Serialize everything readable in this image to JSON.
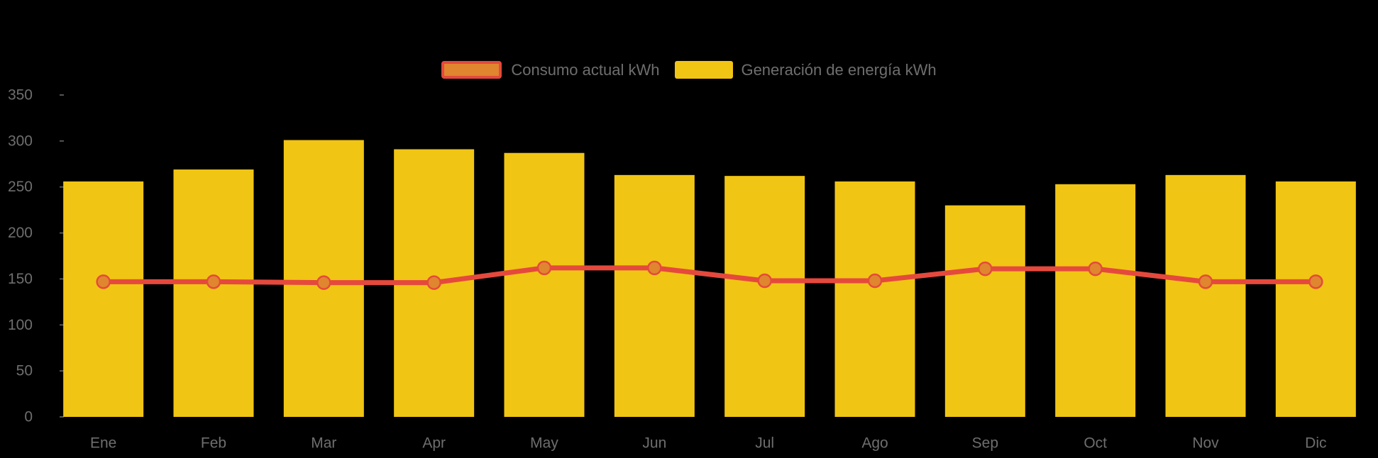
{
  "legend": {
    "consumo_label": "Consumo actual kWh",
    "generacion_label": "Generación de energía kWh"
  },
  "chart_data": {
    "type": "combo",
    "categories": [
      "Ene",
      "Feb",
      "Mar",
      "Apr",
      "May",
      "Jun",
      "Jul",
      "Ago",
      "Sep",
      "Oct",
      "Nov",
      "Dic"
    ],
    "series": [
      {
        "name": "Consumo actual kWh",
        "type": "line",
        "values": [
          147,
          147,
          146,
          146,
          162,
          162,
          148,
          148,
          161,
          161,
          147,
          147
        ],
        "line_color": "#E5493D",
        "point_color": "#E0862E"
      },
      {
        "name": "Generación de energía kWh",
        "type": "bar",
        "values": [
          256,
          269,
          301,
          291,
          287,
          263,
          262,
          256,
          230,
          253,
          263,
          256
        ],
        "color": "#F1C513"
      }
    ],
    "ylabel": "",
    "xlabel": "",
    "ylim": [
      0,
      350
    ],
    "yticks": [
      0,
      50,
      100,
      150,
      200,
      250,
      300,
      350
    ],
    "grid": false,
    "legend_position": "top-center",
    "background": "#000000",
    "axis_text_color": "#6E6E6E",
    "tick_color": "#555555"
  }
}
